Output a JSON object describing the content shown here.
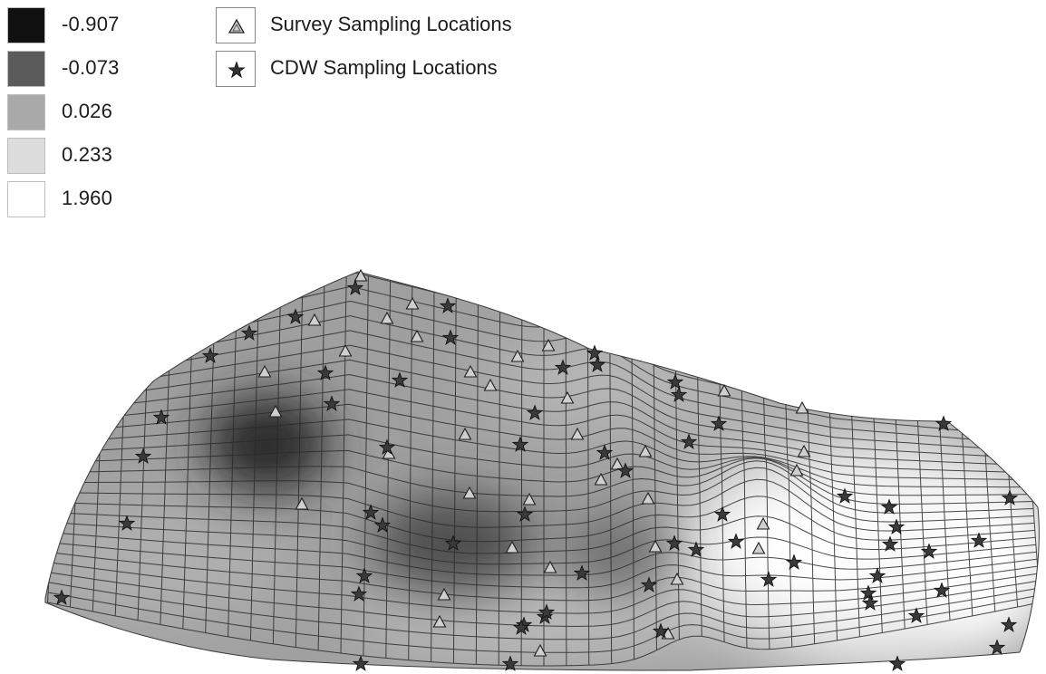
{
  "legend": {
    "classes": [
      {
        "label": "-0.907",
        "color": "#111111"
      },
      {
        "label": "-0.073",
        "color": "#5b5b5b"
      },
      {
        "label": "0.026",
        "color": "#a9a9a9"
      },
      {
        "label": "0.233",
        "color": "#dcdcdc"
      },
      {
        "label": "1.960",
        "color": "#ffffff"
      }
    ],
    "symbols": [
      {
        "label": "Survey Sampling Locations",
        "icon": "triangle-icon"
      },
      {
        "label": "CDW Sampling Locations",
        "icon": "star-icon"
      }
    ]
  }
}
